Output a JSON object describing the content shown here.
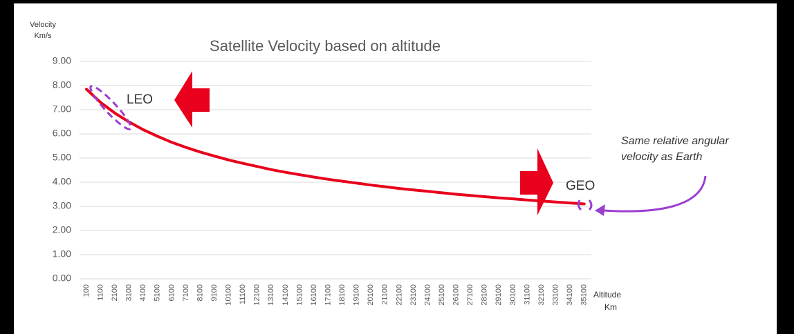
{
  "chart_data": {
    "type": "line",
    "title": "Satellite Velocity based on altitude",
    "y_label": [
      "Velocity",
      "Km/s"
    ],
    "x_label": [
      "Altitude",
      "Km"
    ],
    "annotations": [
      "LEO",
      "GEO"
    ],
    "note": [
      "Same relative angular",
      "velocity as Earth"
    ],
    "categories": [
      "100",
      "1100",
      "2100",
      "3100",
      "4100",
      "5100",
      "6100",
      "7100",
      "8100",
      "9100",
      "10100",
      "11100",
      "12100",
      "13100",
      "14100",
      "15100",
      "16100",
      "17100",
      "18100",
      "19100",
      "20100",
      "21100",
      "22100",
      "23100",
      "24100",
      "25100",
      "26100",
      "27100",
      "28100",
      "29100",
      "30100",
      "31100",
      "32100",
      "33100",
      "34100",
      "35100"
    ],
    "series": [
      {
        "name": "Velocity",
        "color": "#e8001c",
        "values": [
          7.85,
          7.3,
          6.86,
          6.49,
          6.17,
          5.9,
          5.65,
          5.44,
          5.25,
          5.08,
          4.92,
          4.78,
          4.65,
          4.52,
          4.41,
          4.31,
          4.21,
          4.12,
          4.04,
          3.96,
          3.88,
          3.81,
          3.74,
          3.68,
          3.62,
          3.56,
          3.5,
          3.45,
          3.4,
          3.35,
          3.31,
          3.26,
          3.22,
          3.18,
          3.14,
          3.1
        ]
      }
    ],
    "ylim": [
      0,
      9
    ],
    "yticks": [
      {
        "value": 0,
        "label": "0.00"
      },
      {
        "value": 1,
        "label": "1.00"
      },
      {
        "value": 2,
        "label": "2.00"
      },
      {
        "value": 3,
        "label": "3.00"
      },
      {
        "value": 4,
        "label": "4.00"
      },
      {
        "value": 5,
        "label": "5.00"
      },
      {
        "value": 6,
        "label": "6.00"
      },
      {
        "value": 7,
        "label": "7.00"
      },
      {
        "value": 8,
        "label": "8.00"
      },
      {
        "value": 9,
        "label": "9.00"
      }
    ],
    "grid": true
  }
}
